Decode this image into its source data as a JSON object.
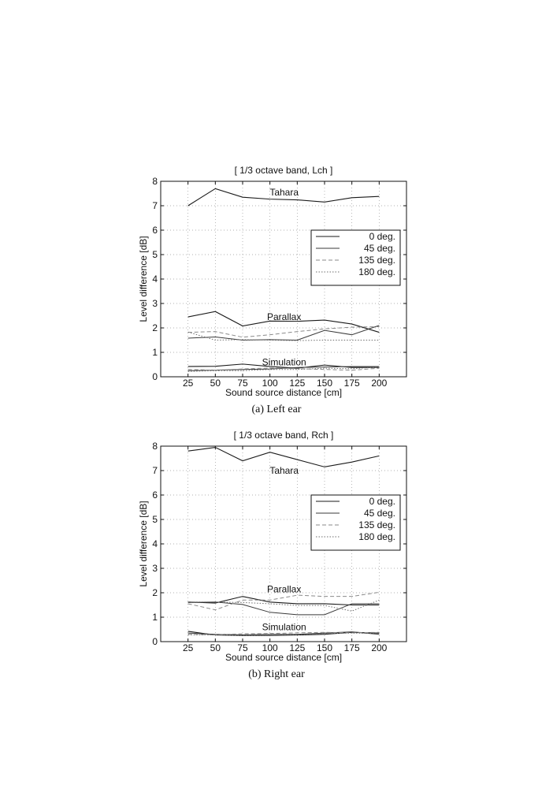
{
  "chart_data": [
    {
      "type": "line",
      "title": "[ 1/3 octave band, Lch ]",
      "caption": "(a) Left ear",
      "xlabel": "Sound source distance [cm]",
      "ylabel": "Level difference [dB]",
      "x": [
        25,
        50,
        75,
        100,
        125,
        150,
        175,
        200
      ],
      "ylim": [
        0,
        8
      ],
      "yticks": [
        0,
        1,
        2,
        3,
        4,
        5,
        6,
        7,
        8
      ],
      "grid": true,
      "legend_position": "right",
      "legend": [
        "0 deg.",
        "45 deg.",
        "135 deg.",
        "180 deg."
      ],
      "annotations": [
        {
          "text": "Tahara",
          "x": 113,
          "y": 7.55
        },
        {
          "text": "Parallax",
          "x": 113,
          "y": 2.45
        },
        {
          "text": "Simulation",
          "x": 113,
          "y": 0.6
        }
      ],
      "groups": [
        {
          "name": "Tahara",
          "series": [
            {
              "name": "0 deg.",
              "values": [
                7.0,
                7.7,
                7.35,
                7.27,
                7.24,
                7.15,
                7.33,
                7.38
              ]
            }
          ]
        },
        {
          "name": "Parallax",
          "series": [
            {
              "name": "0 deg.",
              "values": [
                2.45,
                2.67,
                2.08,
                2.28,
                2.27,
                2.32,
                2.16,
                1.82
              ]
            },
            {
              "name": "45 deg.",
              "values": [
                1.58,
                1.63,
                1.5,
                1.52,
                1.5,
                1.9,
                1.72,
                2.1
              ]
            },
            {
              "name": "135 deg.",
              "values": [
                1.82,
                1.85,
                1.62,
                1.72,
                1.85,
                1.96,
                2.03,
                2.05
              ]
            },
            {
              "name": "180 deg.",
              "values": [
                1.83,
                1.5,
                1.52,
                1.5,
                1.48,
                1.5,
                1.5,
                1.5
              ]
            }
          ]
        },
        {
          "name": "Simulation",
          "series": [
            {
              "name": "0 deg.",
              "values": [
                0.42,
                0.43,
                0.52,
                0.42,
                0.35,
                0.48,
                0.38,
                0.38
              ]
            },
            {
              "name": "45 deg.",
              "values": [
                0.25,
                0.27,
                0.3,
                0.32,
                0.38,
                0.4,
                0.42,
                0.42
              ]
            },
            {
              "name": "135 deg.",
              "values": [
                0.3,
                0.27,
                0.32,
                0.36,
                0.33,
                0.3,
                0.27,
                0.35
              ]
            },
            {
              "name": "180 deg.",
              "values": [
                0.22,
                0.25,
                0.25,
                0.3,
                0.3,
                0.35,
                0.33,
                0.4
              ]
            }
          ]
        }
      ]
    },
    {
      "type": "line",
      "title": "[ 1/3 octave band, Rch ]",
      "caption": "(b) Right ear",
      "xlabel": "Sound source distance [cm]",
      "ylabel": "Level difference [dB]",
      "x": [
        25,
        50,
        75,
        100,
        125,
        150,
        175,
        200
      ],
      "ylim": [
        0,
        8
      ],
      "yticks": [
        0,
        1,
        2,
        3,
        4,
        5,
        6,
        7,
        8
      ],
      "grid": true,
      "legend_position": "right",
      "legend": [
        "0 deg.",
        "45 deg.",
        "135 deg.",
        "180 deg."
      ],
      "annotations": [
        {
          "text": "Tahara",
          "x": 113,
          "y": 7.0
        },
        {
          "text": "Parallax",
          "x": 113,
          "y": 2.15
        },
        {
          "text": "Simulation",
          "x": 113,
          "y": 0.6
        }
      ],
      "groups": [
        {
          "name": "Tahara",
          "series": [
            {
              "name": "0 deg.",
              "values": [
                7.8,
                7.95,
                7.4,
                7.75,
                7.45,
                7.15,
                7.35,
                7.6
              ]
            }
          ]
        },
        {
          "name": "Parallax",
          "series": [
            {
              "name": "0 deg.",
              "values": [
                1.62,
                1.58,
                1.85,
                1.62,
                1.55,
                1.55,
                1.5,
                1.5
              ]
            },
            {
              "name": "45 deg.",
              "values": [
                1.6,
                1.62,
                1.52,
                1.2,
                1.1,
                1.1,
                1.55,
                1.55
              ]
            },
            {
              "name": "135 deg.",
              "values": [
                1.55,
                1.3,
                1.7,
                1.7,
                1.9,
                1.85,
                1.85,
                2.02
              ]
            },
            {
              "name": "180 deg.",
              "values": [
                1.62,
                1.62,
                1.6,
                1.55,
                1.48,
                1.48,
                1.25,
                1.7
              ]
            }
          ]
        },
        {
          "name": "Simulation",
          "series": [
            {
              "name": "0 deg.",
              "values": [
                0.42,
                0.27,
                0.25,
                0.25,
                0.27,
                0.3,
                0.38,
                0.35
              ]
            },
            {
              "name": "45 deg.",
              "values": [
                0.35,
                0.3,
                0.28,
                0.3,
                0.3,
                0.35,
                0.4,
                0.3
              ]
            },
            {
              "name": "135 deg.",
              "values": [
                0.3,
                0.28,
                0.32,
                0.33,
                0.36,
                0.38,
                0.36,
                0.38
              ]
            },
            {
              "name": "180 deg.",
              "values": [
                0.28,
                0.28,
                0.25,
                0.27,
                0.28,
                0.33,
                0.35,
                0.33
              ]
            }
          ]
        }
      ]
    }
  ]
}
